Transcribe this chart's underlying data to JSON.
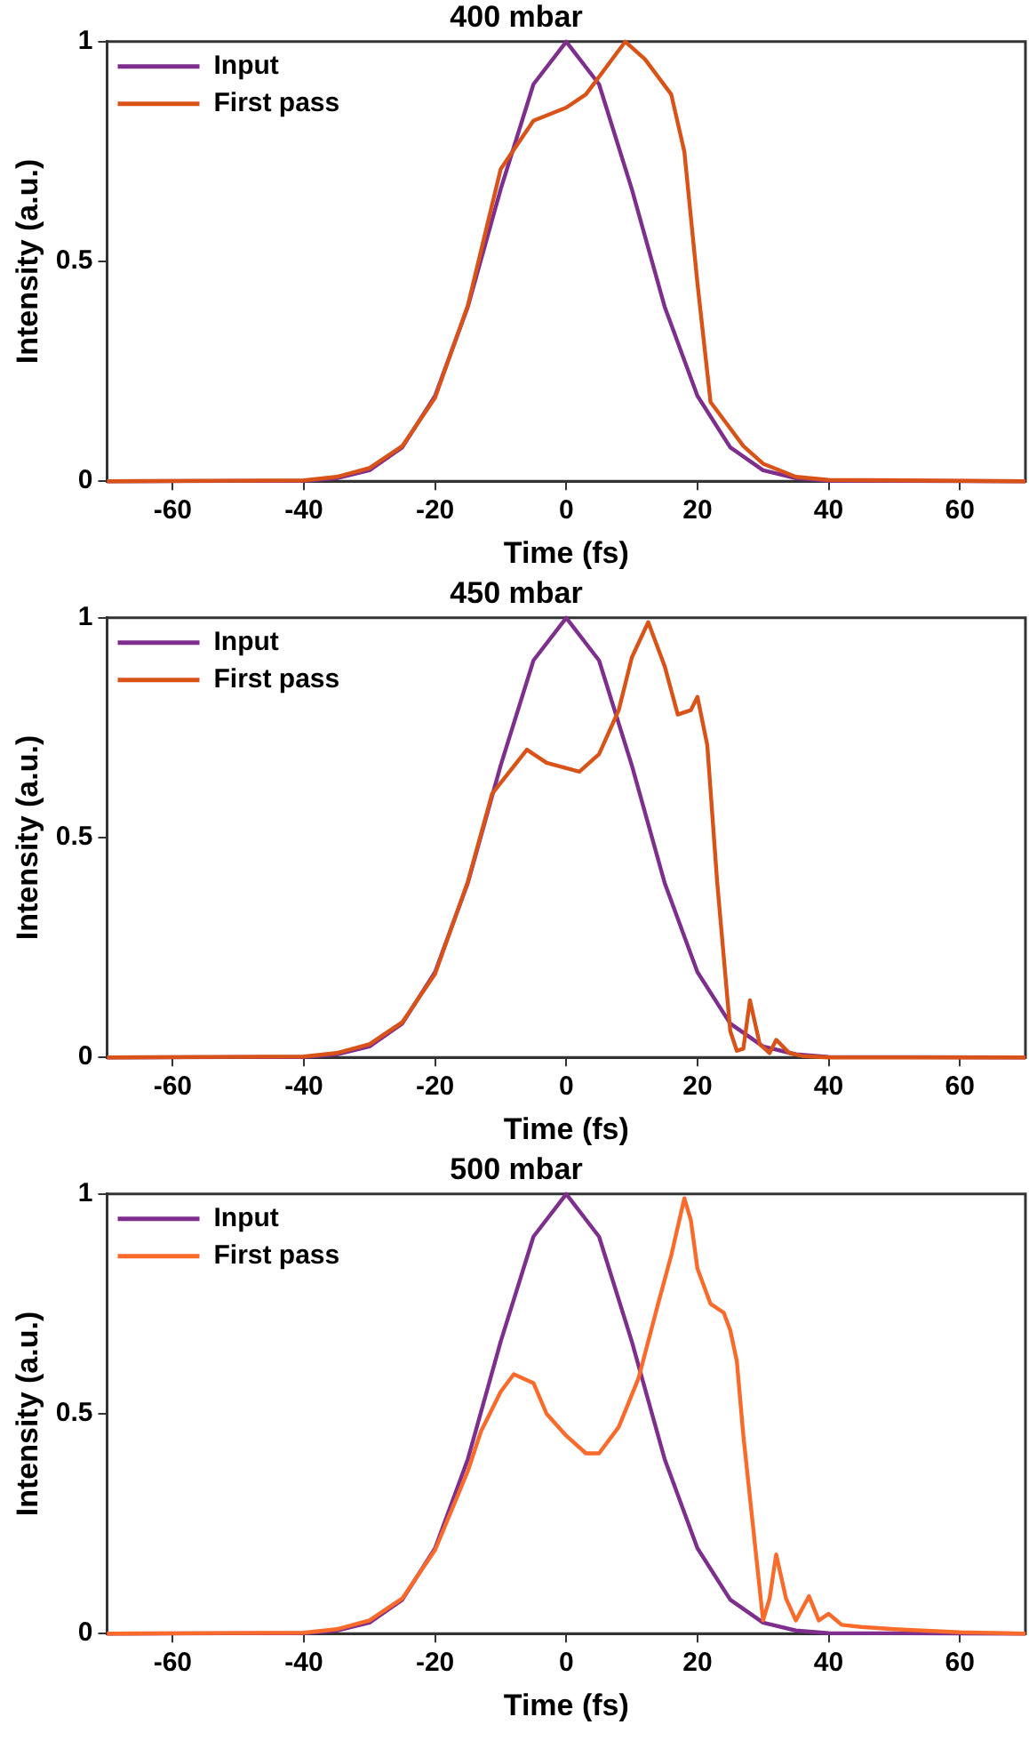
{
  "chart_data": [
    {
      "type": "line",
      "title": "400 mbar",
      "xlabel": "Time (fs)",
      "ylabel": "Intensity (a.u.)",
      "xlim": [
        -70,
        70
      ],
      "xticks": [
        -60,
        -40,
        -20,
        0,
        20,
        40,
        60
      ],
      "ylim": [
        0,
        1
      ],
      "yticks": [
        0,
        0.5,
        1
      ],
      "grid": false,
      "legend": "top left",
      "marker": "none",
      "line_style": "solid",
      "series": [
        {
          "name": "Input",
          "color": "#7e2f8e",
          "x": [
            -70,
            -40,
            -35,
            -30,
            -25,
            -20,
            -15,
            -10,
            -5,
            0,
            5,
            10,
            15,
            20,
            25,
            30,
            35,
            40,
            70
          ],
          "values": [
            0,
            0.001,
            0.007,
            0.025,
            0.077,
            0.194,
            0.397,
            0.664,
            0.903,
            1,
            0.903,
            0.664,
            0.397,
            0.194,
            0.077,
            0.025,
            0.007,
            0.001,
            0
          ]
        },
        {
          "name": "First pass",
          "color": "#d95319",
          "x": [
            -70,
            -40,
            -35,
            -30,
            -25,
            -20,
            -15,
            -10,
            -5,
            0,
            3,
            6,
            9,
            12,
            16,
            18,
            20,
            22,
            23.5,
            27,
            30,
            35,
            40,
            70
          ],
          "values": [
            0,
            0.002,
            0.01,
            0.03,
            0.08,
            0.19,
            0.4,
            0.71,
            0.82,
            0.85,
            0.88,
            0.94,
            1,
            0.96,
            0.88,
            0.75,
            0.45,
            0.18,
            0.15,
            0.08,
            0.04,
            0.01,
            0.003,
            0
          ]
        }
      ]
    },
    {
      "type": "line",
      "title": "450 mbar",
      "xlabel": "Time (fs)",
      "ylabel": "Intensity (a.u.)",
      "xlim": [
        -70,
        70
      ],
      "xticks": [
        -60,
        -40,
        -20,
        0,
        20,
        40,
        60
      ],
      "ylim": [
        0,
        1
      ],
      "yticks": [
        0,
        0.5,
        1
      ],
      "grid": false,
      "legend": "top left",
      "marker": "none",
      "line_style": "solid",
      "series": [
        {
          "name": "Input",
          "color": "#7e2f8e",
          "x": [
            -70,
            -40,
            -35,
            -30,
            -25,
            -20,
            -15,
            -10,
            -5,
            0,
            5,
            10,
            15,
            20,
            25,
            30,
            35,
            40,
            70
          ],
          "values": [
            0,
            0.001,
            0.007,
            0.025,
            0.077,
            0.194,
            0.397,
            0.664,
            0.903,
            1,
            0.903,
            0.664,
            0.397,
            0.194,
            0.077,
            0.025,
            0.007,
            0.001,
            0
          ]
        },
        {
          "name": "First pass",
          "color": "#d95319",
          "x": [
            -70,
            -40,
            -35,
            -30,
            -25,
            -20,
            -15,
            -11.3,
            -6,
            -3,
            2,
            5,
            8,
            10,
            12.5,
            15,
            17,
            19,
            20,
            21.5,
            23,
            25,
            26,
            27,
            28,
            29.5,
            31,
            32,
            34,
            36,
            40,
            70
          ],
          "values": [
            0,
            0.002,
            0.01,
            0.03,
            0.08,
            0.19,
            0.4,
            0.6,
            0.7,
            0.67,
            0.65,
            0.69,
            0.79,
            0.91,
            0.99,
            0.89,
            0.78,
            0.79,
            0.82,
            0.71,
            0.4,
            0.06,
            0.015,
            0.02,
            0.13,
            0.03,
            0.01,
            0.04,
            0.01,
            0.003,
            0,
            0
          ]
        }
      ]
    },
    {
      "type": "line",
      "title": "500 mbar",
      "xlabel": "Time (fs)",
      "ylabel": "Intensity (a.u.)",
      "xlim": [
        -70,
        70
      ],
      "xticks": [
        -60,
        -40,
        -20,
        0,
        20,
        40,
        60
      ],
      "ylim": [
        0,
        1
      ],
      "yticks": [
        0,
        0.5,
        1
      ],
      "grid": false,
      "legend": "top left",
      "marker": "none",
      "line_style": "solid",
      "series": [
        {
          "name": "Input",
          "color": "#7e2f8e",
          "x": [
            -70,
            -40,
            -35,
            -30,
            -25,
            -20,
            -15,
            -10,
            -5,
            0,
            5,
            10,
            15,
            20,
            25,
            30,
            35,
            40,
            70
          ],
          "values": [
            0,
            0.001,
            0.007,
            0.025,
            0.077,
            0.194,
            0.397,
            0.664,
            0.903,
            1,
            0.903,
            0.664,
            0.397,
            0.194,
            0.077,
            0.025,
            0.007,
            0.001,
            0
          ]
        },
        {
          "name": "First pass",
          "color": "#fa6a2a",
          "x": [
            -70,
            -40,
            -35,
            -30,
            -25,
            -20,
            -15,
            -13,
            -12,
            -10,
            -8,
            -5,
            -3,
            0,
            3,
            5,
            8,
            11,
            14,
            16,
            18,
            19,
            20,
            22,
            24,
            25,
            26,
            27,
            29,
            30,
            31,
            32,
            33.5,
            35,
            37,
            38.5,
            40,
            42,
            45,
            50,
            60,
            70
          ],
          "values": [
            0,
            0.002,
            0.01,
            0.03,
            0.08,
            0.19,
            0.37,
            0.46,
            0.49,
            0.55,
            0.59,
            0.57,
            0.5,
            0.45,
            0.41,
            0.41,
            0.47,
            0.58,
            0.75,
            0.86,
            0.99,
            0.94,
            0.83,
            0.75,
            0.73,
            0.69,
            0.62,
            0.45,
            0.17,
            0.03,
            0.08,
            0.18,
            0.08,
            0.03,
            0.085,
            0.03,
            0.045,
            0.02,
            0.015,
            0.01,
            0.003,
            0
          ]
        }
      ]
    }
  ]
}
